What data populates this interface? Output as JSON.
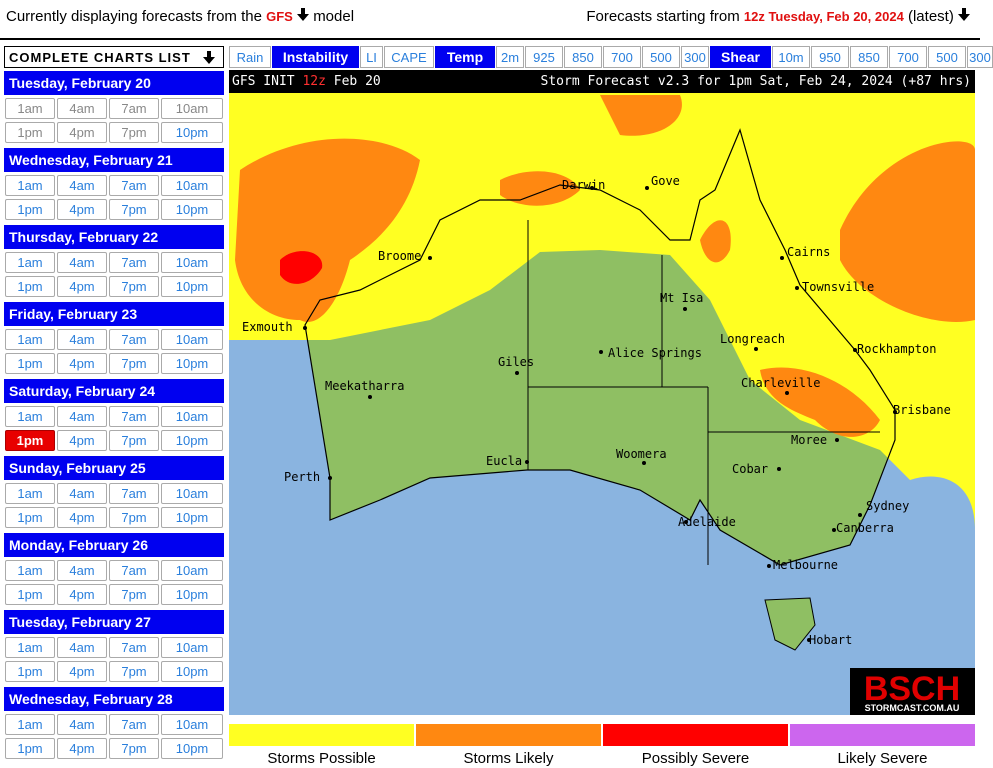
{
  "header": {
    "left_prefix": "Currently displaying forecasts from the",
    "model": "GFS",
    "left_suffix": "model",
    "right_prefix": "Forecasts starting from",
    "run": "12z Tuesday, Feb 20, 2024",
    "right_suffix": "(latest)"
  },
  "sidebar": {
    "title": "COMPLETE CHARTS LIST",
    "times": [
      "1am",
      "4am",
      "7am",
      "10am",
      "1pm",
      "4pm",
      "7pm",
      "10pm"
    ],
    "days": [
      {
        "label": "Tuesday, February 20",
        "states": [
          "past",
          "past",
          "past",
          "past",
          "past",
          "past",
          "past",
          "available"
        ]
      },
      {
        "label": "Wednesday, February 21"
      },
      {
        "label": "Thursday, February 22"
      },
      {
        "label": "Friday, February 23"
      },
      {
        "label": "Saturday, February 24",
        "states": [
          "available",
          "available",
          "available",
          "available",
          "selected",
          "available",
          "available",
          "available"
        ]
      },
      {
        "label": "Sunday, February 25"
      },
      {
        "label": "Monday, February 26"
      },
      {
        "label": "Tuesday, February 27"
      },
      {
        "label": "Wednesday, February 28"
      }
    ]
  },
  "tabs": [
    {
      "label": "Rain"
    },
    {
      "label": "Instability",
      "heading": true
    },
    {
      "label": "LI"
    },
    {
      "label": "CAPE"
    },
    {
      "label": "Temp",
      "heading": true
    },
    {
      "label": "2m"
    },
    {
      "label": "925"
    },
    {
      "label": "850"
    },
    {
      "label": "700"
    },
    {
      "label": "500"
    },
    {
      "label": "300"
    },
    {
      "label": "Shear",
      "heading": true
    },
    {
      "label": "10m"
    },
    {
      "label": "950"
    },
    {
      "label": "850"
    },
    {
      "label": "700"
    },
    {
      "label": "500"
    },
    {
      "label": "300"
    }
  ],
  "map": {
    "init_label": "GFS INIT",
    "init_run": "12z",
    "init_date": "Feb 20",
    "title": "Storm Forecast v2.3 for 1pm Sat, Feb 24, 2024 (+87 hrs)",
    "places": [
      "Darwin",
      "Gove",
      "Broome",
      "Cairns",
      "Townsville",
      "Mt Isa",
      "Exmouth",
      "Longreach",
      "Rockhampton",
      "Giles",
      "Alice Springs",
      "Meekatharra",
      "Charleville",
      "Brisbane",
      "Moree",
      "Perth",
      "Eucla",
      "Woomera",
      "Cobar",
      "Sydney",
      "Adelaide",
      "Canberra",
      "Melbourne",
      "Hobart"
    ],
    "logo": "BSCH",
    "logo_url": "STORMCAST.COM.AU"
  },
  "legend": [
    {
      "label": "Storms Possible",
      "color": "#ffff22"
    },
    {
      "label": "Storms Likely",
      "color": "#ff8811"
    },
    {
      "label": "Possibly Severe",
      "color": "#ff0000"
    },
    {
      "label": "Likely Severe",
      "color": "#cc66ee"
    }
  ]
}
